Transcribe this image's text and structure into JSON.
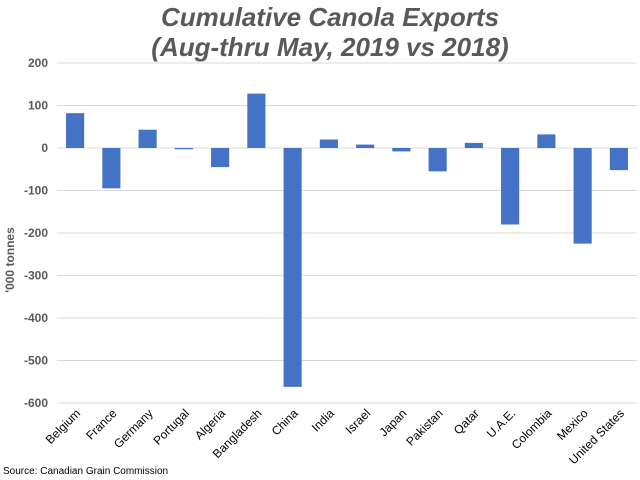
{
  "colors": {
    "bar": "#4472c4",
    "grid": "#d9d9d9",
    "text": "#595959"
  },
  "chart_data": {
    "type": "bar",
    "title_line1": "Cumulative Canola Exports",
    "title_line2": "(Aug-thru May, 2019 vs 2018)",
    "ylabel": "'000 tonnes",
    "xlabel": "",
    "source": "Source: Canadian Grain Commission",
    "ylim": [
      -600,
      200
    ],
    "yticks": [
      200,
      100,
      0,
      -100,
      -200,
      -300,
      -400,
      -500,
      -600
    ],
    "grid": true,
    "categories": [
      "Belgium",
      "France",
      "Germany",
      "Portugal",
      "Algeria",
      "Bangladesh",
      "China",
      "India",
      "Israel",
      "Japan",
      "Pakistan",
      "Qatar",
      "U.A.E.",
      "Colombia",
      "Mexico",
      "United States"
    ],
    "values": [
      82,
      -95,
      43,
      -3,
      -45,
      128,
      -562,
      20,
      8,
      -8,
      -55,
      12,
      -180,
      32,
      -225,
      -52
    ]
  }
}
